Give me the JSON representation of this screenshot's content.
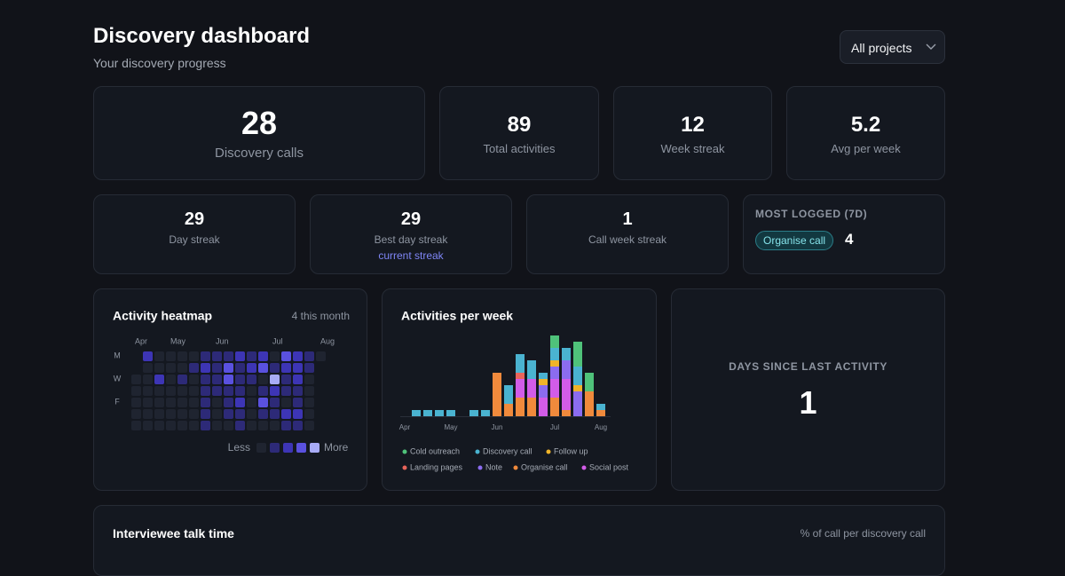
{
  "header": {
    "title": "Discovery dashboard",
    "subtitle": "Your discovery progress",
    "project_select": "All projects"
  },
  "stats_top": [
    {
      "value": 28,
      "label": "Discovery calls"
    },
    {
      "value": 89,
      "label": "Total activities"
    },
    {
      "value": 12,
      "label": "Week streak"
    },
    {
      "value": 5.2,
      "label": "Avg per week"
    }
  ],
  "stats_second": [
    {
      "value": 29,
      "label": "Day streak"
    },
    {
      "value": 29,
      "label": "Best day streak",
      "note": "current streak"
    },
    {
      "value": 1,
      "label": "Call week streak"
    }
  ],
  "most_logged": {
    "title": "MOST LOGGED (7D)",
    "tag": "Organise call",
    "count": 4
  },
  "heatmap": {
    "title": "Activity heatmap",
    "summary": "4 this month",
    "months": [
      "Apr",
      "May",
      "Jun",
      "Jul",
      "Aug"
    ],
    "day_labels": [
      "M",
      "W",
      "F"
    ],
    "legend_less": "Less",
    "legend_more": "More",
    "colors": [
      "#1f2430",
      "#2d2a78",
      "#3d35b5",
      "#5a51df",
      "#a8abf6"
    ],
    "levels": [
      [
        null,
        2,
        0,
        0,
        0,
        0,
        1,
        1,
        1,
        2,
        1,
        2,
        0,
        3,
        2,
        1,
        0
      ],
      [
        null,
        0,
        0,
        0,
        0,
        1,
        2,
        1,
        3,
        1,
        2,
        3,
        1,
        2,
        2,
        1,
        null
      ],
      [
        0,
        0,
        2,
        0,
        1,
        0,
        1,
        1,
        3,
        1,
        1,
        0,
        4,
        1,
        2,
        0,
        null
      ],
      [
        0,
        0,
        0,
        0,
        0,
        0,
        1,
        1,
        1,
        1,
        0,
        1,
        2,
        1,
        1,
        0,
        null
      ],
      [
        0,
        0,
        0,
        0,
        0,
        0,
        1,
        0,
        1,
        2,
        0,
        3,
        1,
        0,
        1,
        0,
        null
      ],
      [
        0,
        0,
        0,
        0,
        0,
        0,
        1,
        0,
        1,
        1,
        0,
        1,
        1,
        2,
        2,
        0,
        null
      ],
      [
        0,
        0,
        0,
        0,
        0,
        0,
        1,
        0,
        0,
        1,
        0,
        0,
        0,
        1,
        1,
        0,
        null
      ]
    ]
  },
  "chart_data": {
    "type": "bar",
    "stacked": true,
    "title": "Activities per week",
    "categories": [
      "Apr",
      null,
      null,
      null,
      "May",
      null,
      null,
      null,
      "Jun",
      null,
      null,
      null,
      null,
      "Jul",
      null,
      null,
      null,
      "Aug"
    ],
    "ylim": [
      0,
      13
    ],
    "series": [
      {
        "name": "Cold outreach",
        "color": "#4fc27a",
        "values": [
          0,
          0,
          0,
          0,
          0,
          0,
          0,
          0,
          0,
          0,
          0,
          0,
          0,
          2,
          0,
          4,
          3,
          0
        ]
      },
      {
        "name": "Discovery call",
        "color": "#4ab3d0",
        "values": [
          0,
          1,
          1,
          1,
          1,
          0,
          1,
          1,
          0,
          3,
          3,
          3,
          1,
          2,
          2,
          3,
          0,
          1
        ]
      },
      {
        "name": "Follow up",
        "color": "#f0b429",
        "values": [
          0,
          0,
          0,
          0,
          0,
          0,
          0,
          0,
          0,
          0,
          0,
          0,
          1,
          1,
          0,
          1,
          0,
          0
        ]
      },
      {
        "name": "Landing pages",
        "color": "#e8645a",
        "values": [
          0,
          0,
          0,
          0,
          0,
          0,
          0,
          0,
          0,
          0,
          1,
          0,
          0,
          0,
          0,
          0,
          0,
          0
        ]
      },
      {
        "name": "Note",
        "color": "#8b6cf0",
        "values": [
          0,
          0,
          0,
          0,
          0,
          0,
          0,
          0,
          0,
          0,
          0,
          0,
          2,
          2,
          3,
          4,
          0,
          0
        ]
      },
      {
        "name": "Organise call",
        "color": "#f08a3c",
        "values": [
          0,
          0,
          0,
          0,
          0,
          0,
          0,
          0,
          7,
          2,
          3,
          3,
          0,
          3,
          1,
          0,
          4,
          1
        ]
      },
      {
        "name": "Social post",
        "color": "#d25ce8",
        "values": [
          0,
          0,
          0,
          0,
          0,
          0,
          0,
          0,
          0,
          0,
          3,
          3,
          3,
          3,
          5,
          0,
          0,
          0
        ]
      }
    ]
  },
  "days_since": {
    "title": "DAYS SINCE LAST ACTIVITY",
    "value": 1
  },
  "talk_time": {
    "title": "Interviewee talk time",
    "subtitle": "% of call per discovery call"
  }
}
